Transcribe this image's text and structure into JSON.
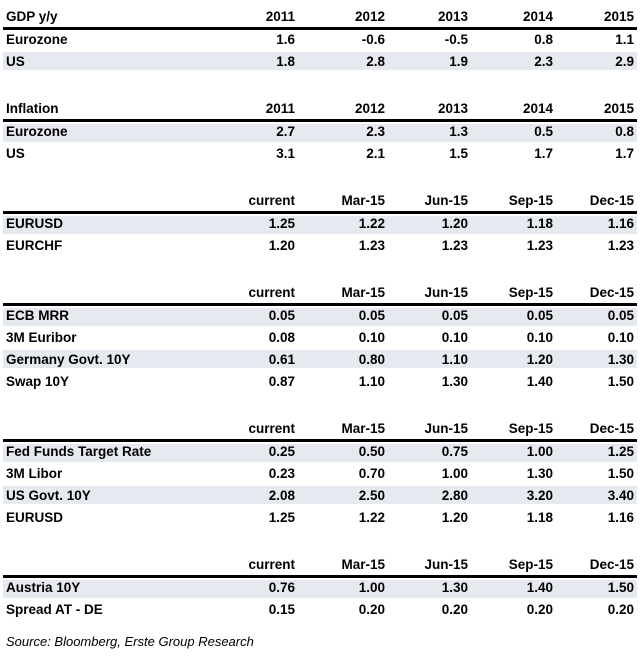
{
  "page": {
    "background": "#ffffff",
    "shade_color": "#e6e9ef",
    "text_color": "#000000",
    "rule_color": "#000000"
  },
  "source_note": "Source: Bloomberg, Erste Group Research",
  "chart_data": [
    {
      "type": "table",
      "id": "gdp-yy",
      "title": "GDP y/y",
      "columns": [
        "2011",
        "2012",
        "2013",
        "2014",
        "2015"
      ],
      "rows": [
        {
          "label": "Eurozone",
          "shaded": false,
          "values": [
            "1.6",
            "-0.6",
            "-0.5",
            "0.8",
            "1.1"
          ]
        },
        {
          "label": "US",
          "shaded": true,
          "values": [
            "1.8",
            "2.8",
            "1.9",
            "2.3",
            "2.9"
          ]
        }
      ]
    },
    {
      "type": "table",
      "id": "inflation",
      "title": "Inflation",
      "columns": [
        "2011",
        "2012",
        "2013",
        "2014",
        "2015"
      ],
      "rows": [
        {
          "label": "Eurozone",
          "shaded": true,
          "values": [
            "2.7",
            "2.3",
            "1.3",
            "0.5",
            "0.8"
          ]
        },
        {
          "label": "US",
          "shaded": false,
          "values": [
            "3.1",
            "2.1",
            "1.5",
            "1.7",
            "1.7"
          ]
        }
      ]
    },
    {
      "type": "table",
      "id": "fx-forecasts",
      "title": "",
      "columns": [
        "current",
        "Mar-15",
        "Jun-15",
        "Sep-15",
        "Dec-15"
      ],
      "rows": [
        {
          "label": "EURUSD",
          "shaded": true,
          "values": [
            "1.25",
            "1.22",
            "1.20",
            "1.18",
            "1.16"
          ]
        },
        {
          "label": "EURCHF",
          "shaded": false,
          "values": [
            "1.20",
            "1.23",
            "1.23",
            "1.23",
            "1.23"
          ]
        }
      ]
    },
    {
      "type": "table",
      "id": "eurozone-rates",
      "title": "",
      "columns": [
        "current",
        "Mar-15",
        "Jun-15",
        "Sep-15",
        "Dec-15"
      ],
      "rows": [
        {
          "label": "ECB MRR",
          "shaded": true,
          "values": [
            "0.05",
            "0.05",
            "0.05",
            "0.05",
            "0.05"
          ]
        },
        {
          "label": "3M Euribor",
          "shaded": false,
          "values": [
            "0.08",
            "0.10",
            "0.10",
            "0.10",
            "0.10"
          ]
        },
        {
          "label": "Germany Govt. 10Y",
          "shaded": true,
          "values": [
            "0.61",
            "0.80",
            "1.10",
            "1.20",
            "1.30"
          ]
        },
        {
          "label": "Swap 10Y",
          "shaded": false,
          "values": [
            "0.87",
            "1.10",
            "1.30",
            "1.40",
            "1.50"
          ]
        }
      ]
    },
    {
      "type": "table",
      "id": "us-rates",
      "title": "",
      "columns": [
        "current",
        "Mar-15",
        "Jun-15",
        "Sep-15",
        "Dec-15"
      ],
      "rows": [
        {
          "label": "Fed Funds Target Rate",
          "shaded": true,
          "values": [
            "0.25",
            "0.50",
            "0.75",
            "1.00",
            "1.25"
          ]
        },
        {
          "label": "3M Libor",
          "shaded": false,
          "values": [
            "0.23",
            "0.70",
            "1.00",
            "1.30",
            "1.50"
          ]
        },
        {
          "label": "US Govt. 10Y",
          "shaded": true,
          "values": [
            "2.08",
            "2.50",
            "2.80",
            "3.20",
            "3.40"
          ]
        },
        {
          "label": "EURUSD",
          "shaded": false,
          "values": [
            "1.25",
            "1.22",
            "1.20",
            "1.18",
            "1.16"
          ]
        }
      ]
    },
    {
      "type": "table",
      "id": "austria-rates",
      "title": "",
      "columns": [
        "current",
        "Mar-15",
        "Jun-15",
        "Sep-15",
        "Dec-15"
      ],
      "rows": [
        {
          "label": "Austria 10Y",
          "shaded": true,
          "values": [
            "0.76",
            "1.00",
            "1.30",
            "1.40",
            "1.50"
          ]
        },
        {
          "label": "Spread AT - DE",
          "shaded": false,
          "values": [
            "0.15",
            "0.20",
            "0.20",
            "0.20",
            "0.20"
          ]
        }
      ]
    }
  ]
}
